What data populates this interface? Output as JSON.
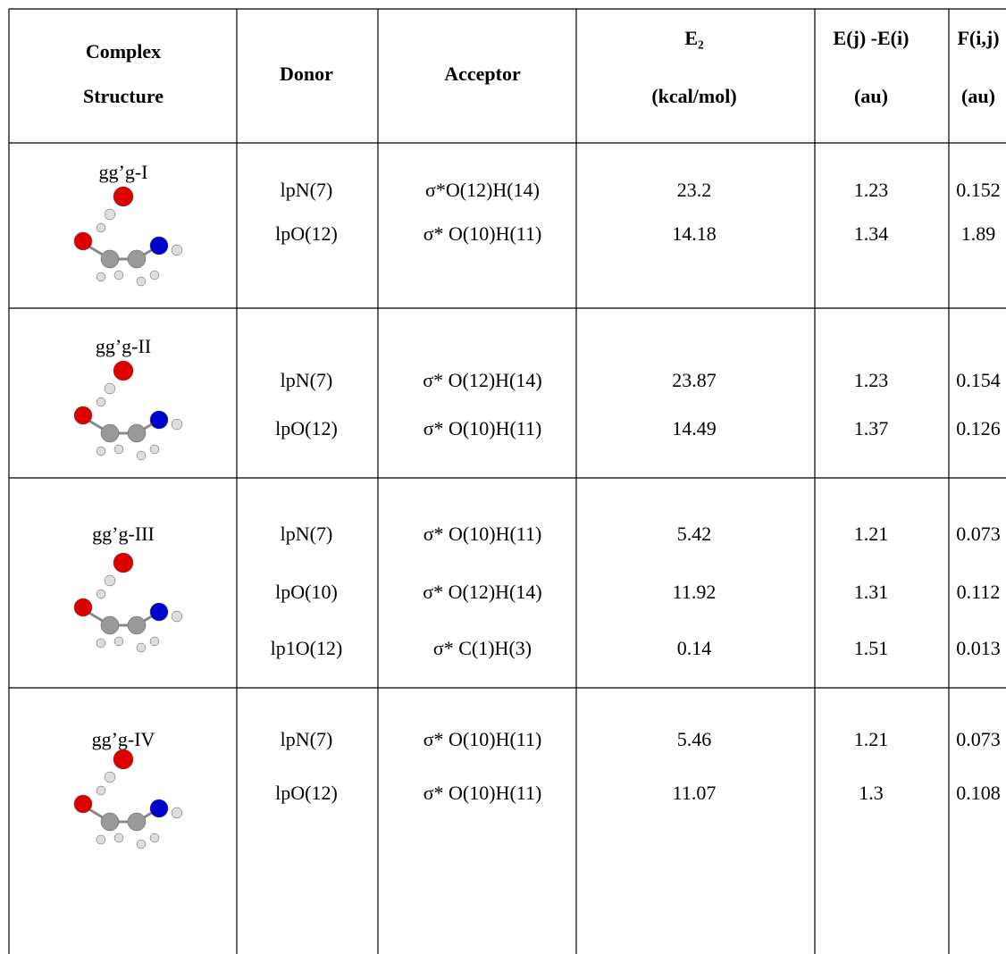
{
  "table": {
    "header": [
      [
        "Complex",
        "Structure"
      ],
      [
        "Donor"
      ],
      [
        "Acceptor"
      ],
      [
        "E₂",
        "(kcal/mol)"
      ],
      [
        "E(j) -E(i)",
        "(au)"
      ],
      [
        "F(i,j)",
        "(au)"
      ]
    ],
    "rows": [
      {
        "structure": "gg’g-I",
        "interactions": [
          [
            "lpN(7)",
            "σ*O(12)H(14)",
            "23.2",
            "1.23",
            "0.152"
          ],
          [
            "lpO(12)",
            "σ* O(10)H(11)",
            "14.18",
            "1.34",
            "1.89"
          ]
        ]
      },
      {
        "structure": "gg’g-II",
        "interactions": [
          [
            "lpN(7)",
            "σ* O(12)H(14)",
            "23.87",
            "1.23",
            "0.154"
          ],
          [
            "lpO(12)",
            "σ* O(10)H(11)",
            "14.49",
            "1.37",
            "0.126"
          ]
        ]
      },
      {
        "structure": "gg’g-III",
        "interactions": [
          [
            "lpN(7)",
            "σ* O(10)H(11)",
            "5.42",
            "1.21",
            "0.073"
          ],
          [
            "lpO(10)",
            "σ* O(12)H(14)",
            "11.92",
            "1.31",
            "0.112"
          ],
          [
            "lp1O(12)",
            "σ* C(1)H(3)",
            "0.14",
            "1.51",
            "0.013"
          ]
        ]
      },
      {
        "structure": "gg’g-IV",
        "interactions": [
          [
            "lpN(7)",
            "σ* O(10)H(11)",
            "5.46",
            "1.21",
            "0.073"
          ],
          [
            "lpO(12)",
            "σ* O(10)H(11)",
            "11.07",
            "1.3",
            "0.108"
          ]
        ]
      }
    ]
  }
}
